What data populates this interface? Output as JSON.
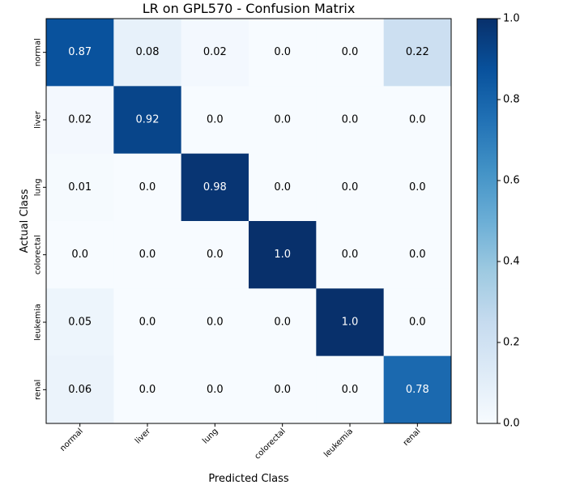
{
  "chart_data": {
    "type": "heatmap",
    "title": "LR on GPL570 - Confusion Matrix",
    "xlabel": "Predicted Class",
    "ylabel": "Actual Class",
    "x_categories": [
      "normal",
      "liver",
      "lung",
      "colorectal",
      "leukemia",
      "renal"
    ],
    "y_categories": [
      "normal",
      "liver",
      "lung",
      "colorectal",
      "leukemia",
      "renal"
    ],
    "values": [
      [
        0.87,
        0.08,
        0.02,
        0.0,
        0.0,
        0.22
      ],
      [
        0.02,
        0.92,
        0.0,
        0.0,
        0.0,
        0.0
      ],
      [
        0.01,
        0.0,
        0.98,
        0.0,
        0.0,
        0.0
      ],
      [
        0.0,
        0.0,
        0.0,
        1.0,
        0.0,
        0.0
      ],
      [
        0.05,
        0.0,
        0.0,
        0.0,
        1.0,
        0.0
      ],
      [
        0.06,
        0.0,
        0.0,
        0.0,
        0.0,
        0.78
      ]
    ],
    "value_labels": [
      [
        "0.87",
        "0.08",
        "0.02",
        "0.0",
        "0.0",
        "0.22"
      ],
      [
        "0.02",
        "0.92",
        "0.0",
        "0.0",
        "0.0",
        "0.0"
      ],
      [
        "0.01",
        "0.0",
        "0.98",
        "0.0",
        "0.0",
        "0.0"
      ],
      [
        "0.0",
        "0.0",
        "0.0",
        "1.0",
        "0.0",
        "0.0"
      ],
      [
        "0.05",
        "0.0",
        "0.0",
        "0.0",
        "1.0",
        "0.0"
      ],
      [
        "0.06",
        "0.0",
        "0.0",
        "0.0",
        "0.0",
        "0.78"
      ]
    ],
    "colormap": "Blues",
    "colorbar": {
      "range": [
        0.0,
        1.0
      ],
      "ticks": [
        0.0,
        0.2,
        0.4,
        0.6,
        0.8,
        1.0
      ],
      "tick_labels": [
        "0.0",
        "0.2",
        "0.4",
        "0.6",
        "0.8",
        "1.0"
      ]
    },
    "grid": false,
    "text_threshold": 0.5,
    "colors": {
      "text_light": "#ffffff",
      "text_dark": "#000000"
    }
  }
}
